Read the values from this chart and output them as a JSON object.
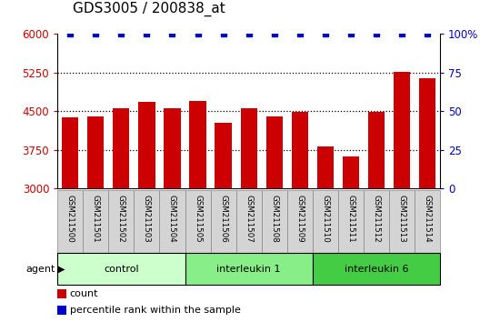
{
  "title": "GDS3005 / 200838_at",
  "samples": [
    "GSM211500",
    "GSM211501",
    "GSM211502",
    "GSM211503",
    "GSM211504",
    "GSM211505",
    "GSM211506",
    "GSM211507",
    "GSM211508",
    "GSM211509",
    "GSM211510",
    "GSM211511",
    "GSM211512",
    "GSM211513",
    "GSM211514"
  ],
  "counts": [
    4380,
    4400,
    4560,
    4680,
    4560,
    4700,
    4270,
    4560,
    4390,
    4490,
    3820,
    3620,
    4490,
    5260,
    5140
  ],
  "percentile": [
    100,
    100,
    100,
    100,
    100,
    100,
    100,
    100,
    100,
    100,
    100,
    100,
    100,
    100,
    100
  ],
  "bar_color": "#cc0000",
  "percentile_color": "#0000cc",
  "ylim_left": [
    3000,
    6000
  ],
  "ylim_right": [
    0,
    100
  ],
  "yticks_left": [
    3000,
    3750,
    4500,
    5250,
    6000
  ],
  "yticks_right": [
    0,
    25,
    50,
    75,
    100
  ],
  "grid_lines": [
    3750,
    4500,
    5250
  ],
  "groups": [
    {
      "label": "control",
      "start": 0,
      "end": 5,
      "color": "#ccffcc"
    },
    {
      "label": "interleukin 1",
      "start": 5,
      "end": 10,
      "color": "#88ee88"
    },
    {
      "label": "interleukin 6",
      "start": 10,
      "end": 15,
      "color": "#44cc44"
    }
  ],
  "agent_label": "agent",
  "legend_count_label": "count",
  "legend_pct_label": "percentile rank within the sample",
  "title_fontsize": 11,
  "axis_tick_color_left": "#cc0000",
  "axis_tick_color_right": "#0000cc",
  "sample_box_color": "#d4d4d4",
  "bar_bottom": 3000
}
